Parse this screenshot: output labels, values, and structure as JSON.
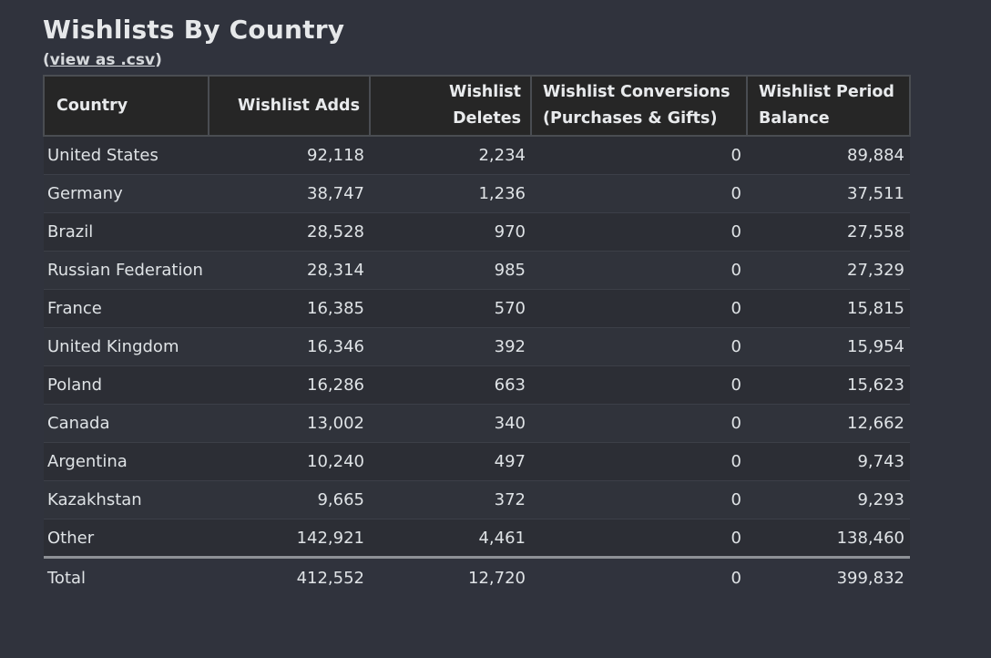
{
  "page": {
    "title": "Wishlists By Country",
    "csv_prefix": "(",
    "csv_link": "view as .csv",
    "csv_suffix": ")"
  },
  "table": {
    "headers": {
      "country": "Country",
      "adds": "Wishlist Adds",
      "deletes": "Wishlist Deletes",
      "conversions_line1": "Wishlist Conversions",
      "conversions_line2": "(Purchases & Gifts)",
      "balance_line1": "Wishlist Period",
      "balance_line2": "Balance"
    },
    "rows": [
      {
        "country": "United States",
        "adds": "92,118",
        "deletes": "2,234",
        "conversions": "0",
        "balance": "89,884"
      },
      {
        "country": "Germany",
        "adds": "38,747",
        "deletes": "1,236",
        "conversions": "0",
        "balance": "37,511"
      },
      {
        "country": "Brazil",
        "adds": "28,528",
        "deletes": "970",
        "conversions": "0",
        "balance": "27,558"
      },
      {
        "country": "Russian Federation",
        "adds": "28,314",
        "deletes": "985",
        "conversions": "0",
        "balance": "27,329"
      },
      {
        "country": "France",
        "adds": "16,385",
        "deletes": "570",
        "conversions": "0",
        "balance": "15,815"
      },
      {
        "country": "United Kingdom",
        "adds": "16,346",
        "deletes": "392",
        "conversions": "0",
        "balance": "15,954"
      },
      {
        "country": "Poland",
        "adds": "16,286",
        "deletes": "663",
        "conversions": "0",
        "balance": "15,623"
      },
      {
        "country": "Canada",
        "adds": "13,002",
        "deletes": "340",
        "conversions": "0",
        "balance": "12,662"
      },
      {
        "country": "Argentina",
        "adds": "10,240",
        "deletes": "497",
        "conversions": "0",
        "balance": "9,743"
      },
      {
        "country": "Kazakhstan",
        "adds": "9,665",
        "deletes": "372",
        "conversions": "0",
        "balance": "9,293"
      },
      {
        "country": "Other",
        "adds": "142,921",
        "deletes": "4,461",
        "conversions": "0",
        "balance": "138,460"
      }
    ],
    "total": {
      "country": "Total",
      "adds": "412,552",
      "deletes": "12,720",
      "conversions": "0",
      "balance": "399,832"
    }
  }
}
